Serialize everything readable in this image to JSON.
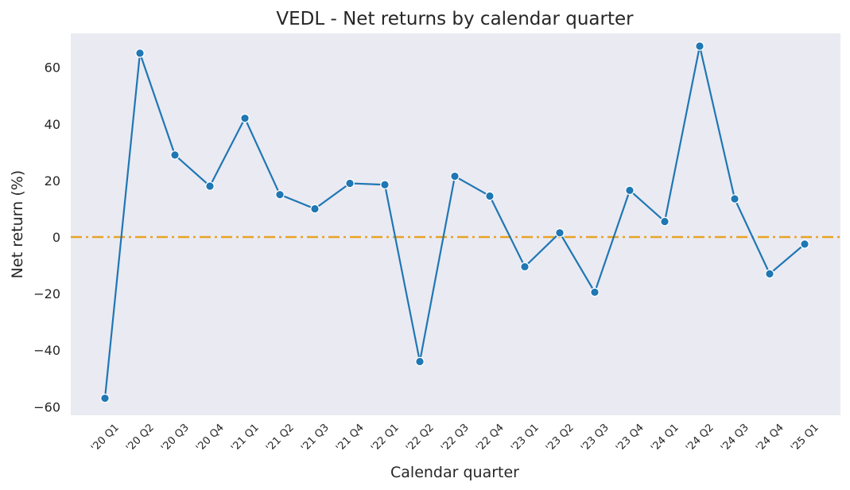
{
  "chart_data": {
    "type": "line",
    "title": "VEDL - Net returns by calendar quarter",
    "xlabel": "Calendar quarter",
    "ylabel": "Net return (%)",
    "ylim": [
      -63,
      72
    ],
    "yticks": [
      60,
      40,
      20,
      0,
      -20,
      -40,
      -60
    ],
    "ytick_labels": [
      "60",
      "40",
      "20",
      "0",
      "−20",
      "−40",
      "−60"
    ],
    "grid": false,
    "categories": [
      "'20 Q1",
      "'20 Q2",
      "'20 Q3",
      "'20 Q4",
      "'21 Q1",
      "'21 Q2",
      "'21 Q3",
      "'21 Q4",
      "'22 Q1",
      "'22 Q2",
      "'22 Q3",
      "'22 Q4",
      "'23 Q1",
      "'23 Q2",
      "'23 Q3",
      "'23 Q4",
      "'24 Q1",
      "'24 Q2",
      "'24 Q3",
      "'24 Q4",
      "'25 Q1"
    ],
    "series": [
      {
        "color": "#1f77b4",
        "values": [
          -57,
          65,
          29,
          18,
          42,
          15,
          10,
          19,
          18.5,
          -44,
          21.5,
          14.5,
          -10.5,
          1.5,
          -19.5,
          16.5,
          5.5,
          67.5,
          13.5,
          -13,
          -2.5
        ]
      }
    ],
    "reference_line": {
      "y": 0,
      "color": "#e8a325",
      "style": "dash-dot"
    },
    "colors": {
      "plot_background": "#eaeaf2",
      "line": "#1f77b4",
      "reference": "#e8a325"
    }
  }
}
